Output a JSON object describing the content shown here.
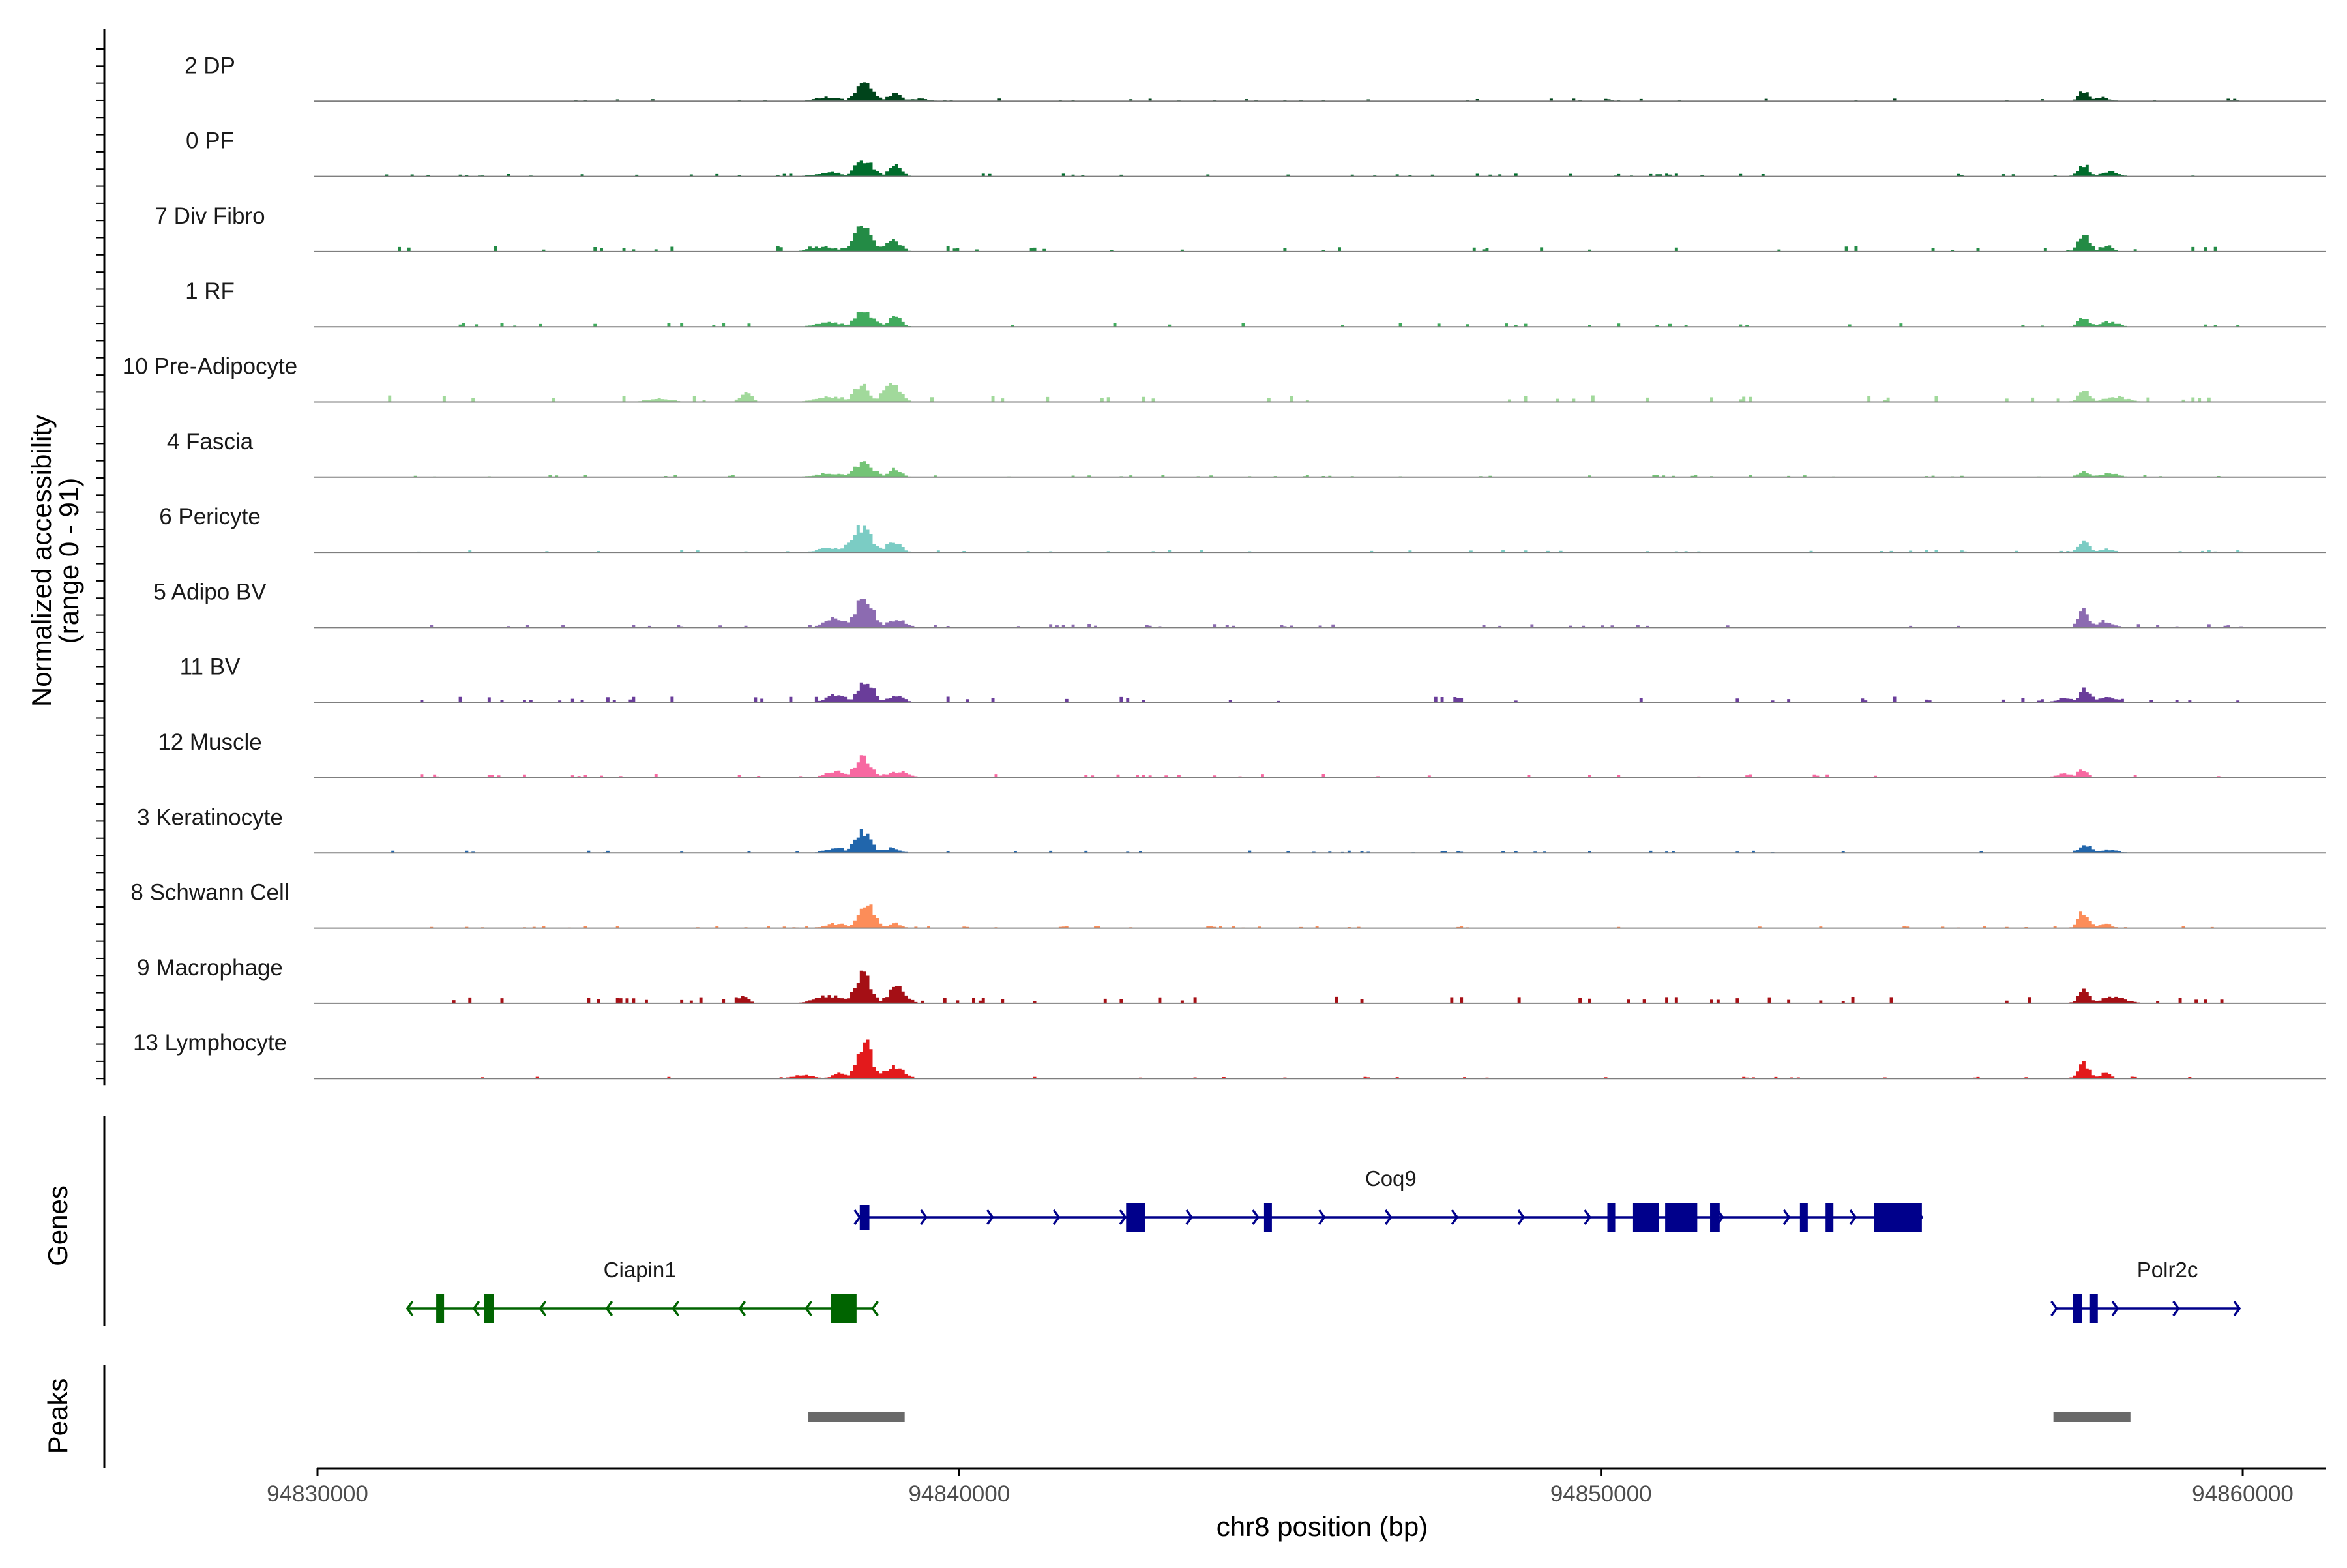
{
  "chart_data": {
    "type": "area",
    "chromosome": "chr8",
    "xlim": [
      94830000,
      94861300
    ],
    "x_ticks": [
      94830000,
      94840000,
      94850000,
      94860000
    ],
    "x_tick_labels": [
      "94830000",
      "94840000",
      "94850000",
      "94860000"
    ],
    "xlabel": "chr8 position (bp)",
    "ylabel": "Normalized accessibility",
    "ylabel_range": "(range 0 - 91)",
    "ylim": [
      0,
      91
    ],
    "grid": false,
    "legend": "none",
    "tracks": [
      {
        "name": "2 DP",
        "color": "#00441b",
        "peaks": [
          [
            94838300,
            94838700,
            22
          ],
          [
            94838850,
            94839100,
            10
          ],
          [
            94837600,
            94838300,
            5
          ],
          [
            94839100,
            94839600,
            3
          ],
          [
            94857400,
            94857600,
            12
          ],
          [
            94857650,
            94857900,
            5
          ]
        ],
        "noise": 1.2
      },
      {
        "name": "0 PF",
        "color": "#006d2c",
        "peaks": [
          [
            94838300,
            94838700,
            22
          ],
          [
            94838850,
            94839100,
            14
          ],
          [
            94837600,
            94838300,
            5
          ],
          [
            94857400,
            94857600,
            14
          ],
          [
            94857700,
            94858100,
            6
          ]
        ],
        "noise": 1.3
      },
      {
        "name": "7 Div Fibro",
        "color": "#238b45",
        "peaks": [
          [
            94838250,
            94838700,
            30
          ],
          [
            94838800,
            94839100,
            16
          ],
          [
            94837500,
            94838250,
            6
          ],
          [
            94857400,
            94857600,
            24
          ],
          [
            94857750,
            94857950,
            8
          ]
        ],
        "noise": 2.5
      },
      {
        "name": "1 RF",
        "color": "#41ab5d",
        "peaks": [
          [
            94838300,
            94838700,
            20
          ],
          [
            94838850,
            94839100,
            12
          ],
          [
            94837600,
            94838300,
            5
          ],
          [
            94857400,
            94857600,
            12
          ],
          [
            94857700,
            94858100,
            6
          ]
        ],
        "noise": 1.8
      },
      {
        "name": "10 Pre-Adipocyte",
        "color": "#a1d99b",
        "peaks": [
          [
            94838300,
            94838600,
            22
          ],
          [
            94838750,
            94839100,
            26
          ],
          [
            94836550,
            94836750,
            12
          ],
          [
            94837600,
            94838300,
            6
          ],
          [
            94857400,
            94857600,
            14
          ],
          [
            94857700,
            94858300,
            6
          ],
          [
            94835000,
            94835600,
            5
          ]
        ],
        "noise": 3.0
      },
      {
        "name": "4 Fascia",
        "color": "#74c476",
        "peaks": [
          [
            94838300,
            94838700,
            20
          ],
          [
            94838850,
            94839100,
            10
          ],
          [
            94837600,
            94838300,
            5
          ],
          [
            94857400,
            94857600,
            8
          ],
          [
            94857700,
            94858100,
            5
          ]
        ],
        "noise": 1.0
      },
      {
        "name": "6 Pericyte",
        "color": "#7bccc4",
        "peaks": [
          [
            94838200,
            94838700,
            30
          ],
          [
            94838800,
            94839100,
            14
          ],
          [
            94837700,
            94838200,
            6
          ],
          [
            94857400,
            94857600,
            14
          ],
          [
            94857700,
            94858000,
            4
          ]
        ],
        "noise": 1.0
      },
      {
        "name": "5 Adipo BV",
        "color": "#8c6bb1",
        "peaks": [
          [
            94838300,
            94838700,
            36
          ],
          [
            94837800,
            94838300,
            12
          ],
          [
            94838800,
            94839200,
            10
          ],
          [
            94857400,
            94857600,
            20
          ],
          [
            94857650,
            94858000,
            8
          ]
        ],
        "noise": 1.6
      },
      {
        "name": "11 BV",
        "color": "#6a3d9a",
        "peaks": [
          [
            94838350,
            94838700,
            26
          ],
          [
            94837800,
            94838350,
            10
          ],
          [
            94838800,
            94839200,
            8
          ],
          [
            94857400,
            94857650,
            16
          ],
          [
            94857000,
            94857400,
            6
          ],
          [
            94857650,
            94858100,
            8
          ]
        ],
        "noise": 2.8
      },
      {
        "name": "12 Muscle",
        "color": "#f768a1",
        "peaks": [
          [
            94838300,
            94838650,
            26
          ],
          [
            94837800,
            94838300,
            8
          ],
          [
            94838700,
            94839300,
            8
          ],
          [
            94857400,
            94857550,
            12
          ],
          [
            94857000,
            94857400,
            5
          ]
        ],
        "noise": 1.8
      },
      {
        "name": "3 Keratinocyte",
        "color": "#2166ac",
        "peaks": [
          [
            94838300,
            94838650,
            26
          ],
          [
            94837800,
            94838300,
            6
          ],
          [
            94838700,
            94839100,
            6
          ],
          [
            94857400,
            94857650,
            10
          ],
          [
            94857700,
            94858100,
            4
          ]
        ],
        "noise": 1.1
      },
      {
        "name": "8 Schwann Cell",
        "color": "#fc8d59",
        "peaks": [
          [
            94838350,
            94838700,
            30
          ],
          [
            94838850,
            94839100,
            6
          ],
          [
            94837800,
            94838350,
            6
          ],
          [
            94857400,
            94857600,
            22
          ],
          [
            94857700,
            94857950,
            6
          ]
        ],
        "noise": 1.0
      },
      {
        "name": "9 Macrophage",
        "color": "#a50f15",
        "peaks": [
          [
            94838300,
            94838650,
            36
          ],
          [
            94838800,
            94839200,
            20
          ],
          [
            94837600,
            94838300,
            10
          ],
          [
            94836550,
            94836700,
            10
          ],
          [
            94857400,
            94857600,
            16
          ],
          [
            94857650,
            94858300,
            8
          ]
        ],
        "noise": 3.0
      },
      {
        "name": "13 Lymphocyte",
        "color": "#e31a1c",
        "peaks": [
          [
            94838350,
            94838650,
            46
          ],
          [
            94838700,
            94839200,
            14
          ],
          [
            94837300,
            94837800,
            4
          ],
          [
            94837950,
            94838300,
            6
          ],
          [
            94857400,
            94857600,
            18
          ],
          [
            94857700,
            94857950,
            6
          ]
        ],
        "noise": 0.8
      }
    ],
    "genes_panel_title": "Genes",
    "genes": [
      {
        "name": "Coq9",
        "strand": "+",
        "color": "#00008b",
        "start": 94838450,
        "end": 94855000,
        "row": 0,
        "exons": [
          [
            94838450,
            94838600,
            "utr"
          ],
          [
            94842600,
            94842900,
            "cds"
          ],
          [
            94844750,
            94844850,
            "cds"
          ],
          [
            94850100,
            94850200,
            "cds"
          ],
          [
            94850500,
            94850900,
            "cds"
          ],
          [
            94851000,
            94851500,
            "cds"
          ],
          [
            94851700,
            94851850,
            "cds"
          ],
          [
            94853100,
            94853200,
            "cds"
          ],
          [
            94853500,
            94853600,
            "cds"
          ],
          [
            94854250,
            94855000,
            "cds"
          ]
        ]
      },
      {
        "name": "Ciapin1",
        "strand": "-",
        "color": "#006400",
        "start": 94831400,
        "end": 94838650,
        "row": 1,
        "exons": [
          [
            94831850,
            94831950,
            "cds"
          ],
          [
            94832600,
            94832750,
            "cds"
          ],
          [
            94838000,
            94838400,
            "cds"
          ]
        ]
      },
      {
        "name": "Polr2c",
        "strand": "+",
        "color": "#00008b",
        "start": 94857100,
        "end": 94859950,
        "row": 1,
        "exons": [
          [
            94857350,
            94857500,
            "cds"
          ],
          [
            94857620,
            94857680,
            "cds"
          ]
        ]
      }
    ],
    "peaks_panel_title": "Peaks",
    "peaks_track": [
      [
        94837650,
        94839150
      ],
      [
        94857050,
        94858250
      ]
    ],
    "peaks_color": "#696969"
  }
}
